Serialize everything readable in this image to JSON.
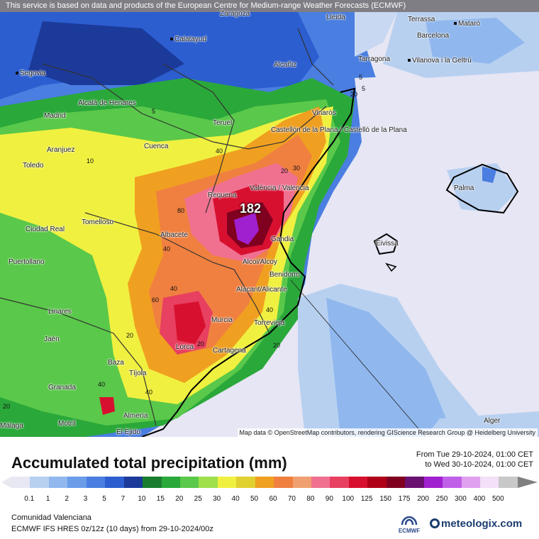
{
  "disclaimer": "This service is based on data and products of the European Centre for Medium-range Weather Forecasts (ECMWF)",
  "attribution": "Map data © OpenStreetMap contributors, rendering GIScience Research Group @ Heidelberg University",
  "max_value": "182",
  "title": "Accumulated total precipitation (mm)",
  "period": {
    "from": "From Tue 29-10-2024, 01:00 CET",
    "to": "to Wed 30-10-2024, 01:00 CET"
  },
  "legend": {
    "ticks": [
      "0.1",
      "1",
      "2",
      "3",
      "5",
      "7",
      "10",
      "15",
      "20",
      "25",
      "30",
      "40",
      "50",
      "60",
      "70",
      "80",
      "90",
      "100",
      "125",
      "150",
      "175",
      "200",
      "250",
      "300",
      "400",
      "500"
    ],
    "colors": [
      "#e8e8f4",
      "#b8d0f0",
      "#90b8ee",
      "#6a9ce8",
      "#4a7ee0",
      "#2c5ed0",
      "#1b3a9a",
      "#1a7e2e",
      "#2aa83a",
      "#5ac84a",
      "#9ee04c",
      "#f0f040",
      "#e0d030",
      "#f0a020",
      "#f08040",
      "#f0a070",
      "#f07090",
      "#e84060",
      "#d81030",
      "#b00018",
      "#800020",
      "#6a1070",
      "#a020d0",
      "#c060e8",
      "#e0a0f0",
      "#f4e0f8",
      "#c8c8c8"
    ]
  },
  "region": "Comunidad Valenciana",
  "model": "ECMWF IFS HRES 0z/12z (10 days) from  29-10-2024/00z",
  "brand": "meteologix.com",
  "ecmwf_logo": "ECMWF",
  "cities": [
    {
      "name": "Segovia"
    },
    {
      "name": "Calatayud"
    },
    {
      "name": "Zaragoza"
    },
    {
      "name": "Lleida"
    },
    {
      "name": "Terrassa"
    },
    {
      "name": "Mataró"
    },
    {
      "name": "Barcelona"
    },
    {
      "name": "Tarragona"
    },
    {
      "name": "Vilanova i la Geltrú"
    },
    {
      "name": "Alcañiz"
    },
    {
      "name": "Alcalá de Henares"
    },
    {
      "name": "Madrid"
    },
    {
      "name": "Teruel"
    },
    {
      "name": "Vinaròs"
    },
    {
      "name": "Castellón de la Plana / Castelló de la Plana"
    },
    {
      "name": "Aranjuez"
    },
    {
      "name": "Cuenca"
    },
    {
      "name": "Toledo"
    },
    {
      "name": "Palma"
    },
    {
      "name": "Requena"
    },
    {
      "name": "València / Valencia"
    },
    {
      "name": "Tomelloso"
    },
    {
      "name": "Ciudad Real"
    },
    {
      "name": "Albacete"
    },
    {
      "name": "Gandia"
    },
    {
      "name": "Eivissa"
    },
    {
      "name": "Puertollano"
    },
    {
      "name": "Alcoi/Alcoy"
    },
    {
      "name": "Benidorm"
    },
    {
      "name": "Alacant/Alicante"
    },
    {
      "name": "Linares"
    },
    {
      "name": "Murcia"
    },
    {
      "name": "Torrevieja"
    },
    {
      "name": "Jaén"
    },
    {
      "name": "Lorca"
    },
    {
      "name": "Cartagena"
    },
    {
      "name": "Baza"
    },
    {
      "name": "Tíjola"
    },
    {
      "name": "Granada"
    },
    {
      "name": "Almería"
    },
    {
      "name": "Motril"
    },
    {
      "name": "El Ejido"
    },
    {
      "name": "Málaga"
    },
    {
      "name": "Alger"
    }
  ],
  "contour_labels": [
    "5",
    "5",
    "10",
    "20",
    "40",
    "40",
    "40",
    "40",
    "40",
    "40",
    "60",
    "80",
    "20",
    "20",
    "20",
    "30",
    "20",
    "20",
    "5"
  ]
}
